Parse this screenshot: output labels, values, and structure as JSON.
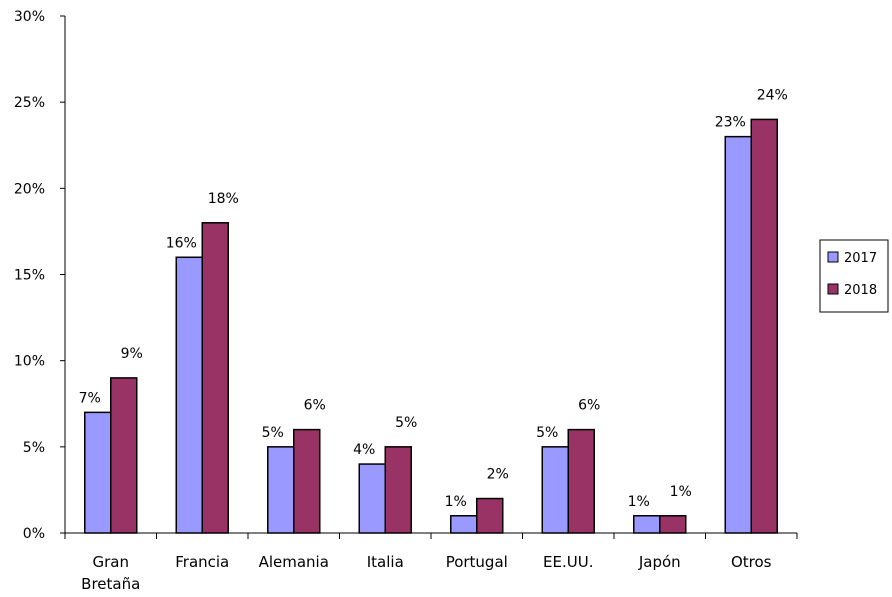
{
  "chart_data": {
    "type": "bar",
    "categories": [
      [
        "Gran",
        "Bretaña"
      ],
      [
        "Francia"
      ],
      [
        "Alemania"
      ],
      [
        "Italia"
      ],
      [
        "Portugal"
      ],
      [
        "EE.UU."
      ],
      [
        "Japón"
      ],
      [
        "Otros"
      ]
    ],
    "series": [
      {
        "name": "2017",
        "values": [
          7,
          16,
          5,
          4,
          1,
          5,
          1,
          23
        ],
        "labels": [
          "7%",
          "16%",
          "5%",
          "4%",
          "1%",
          "5%",
          "1%",
          "23%"
        ],
        "color": "#9999ff"
      },
      {
        "name": "2018",
        "values": [
          9,
          18,
          6,
          5,
          2,
          6,
          1,
          24
        ],
        "labels": [
          "9%",
          "18%",
          "6%",
          "5%",
          "2%",
          "6%",
          "1%",
          "24%"
        ],
        "color": "#993366"
      }
    ],
    "ylim": [
      0,
      30
    ],
    "yticks": [
      0,
      5,
      10,
      15,
      20,
      25,
      30
    ],
    "ytick_labels": [
      "0%",
      "5%",
      "10%",
      "15%",
      "20%",
      "25%",
      "30%"
    ],
    "grid": false,
    "legend_position": "right"
  }
}
